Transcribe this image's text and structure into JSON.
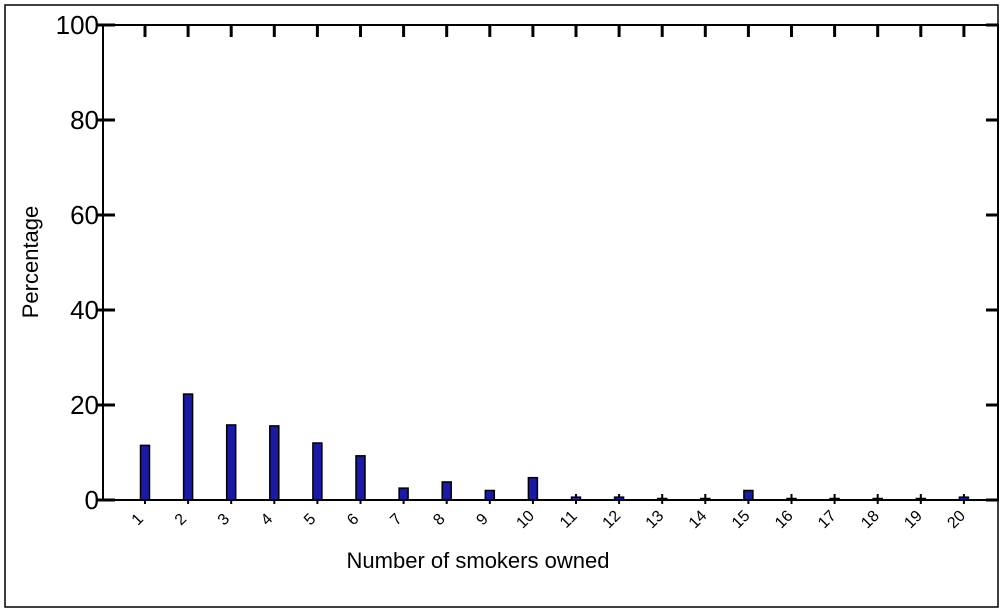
{
  "chart_data": {
    "type": "bar",
    "title": "",
    "xlabel": "Number of smokers owned",
    "ylabel": "Percentage",
    "categories": [
      "1",
      "2",
      "3",
      "4",
      "5",
      "6",
      "7",
      "8",
      "9",
      "10",
      "11",
      "12",
      "13",
      "14",
      "15",
      "16",
      "17",
      "18",
      "19",
      "20"
    ],
    "values": [
      11.5,
      22.3,
      15.8,
      15.6,
      12.0,
      9.3,
      2.5,
      3.8,
      2.0,
      4.7,
      0.6,
      0.6,
      0.2,
      0.2,
      2.0,
      0.2,
      0.2,
      0.1,
      0.1,
      0.6
    ],
    "ylim": [
      0,
      100
    ],
    "yticks": [
      0,
      20,
      40,
      60,
      80,
      100
    ],
    "grid": false,
    "legend": "none",
    "colors": {
      "bar_fill": "#1a1aa6",
      "bar_stroke": "#000000",
      "axis": "#000000",
      "background": "#ffffff"
    }
  }
}
